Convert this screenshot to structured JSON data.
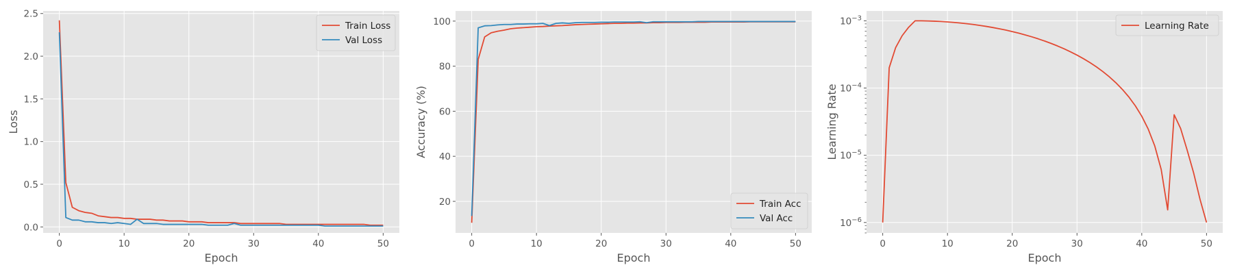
{
  "theme": {
    "panel_bg": "#E5E5E5",
    "grid": "#FFFFFF",
    "tick_color": "#555555",
    "series_red": "#E24A33",
    "series_blue": "#348ABD"
  },
  "chart_data": [
    {
      "type": "line",
      "xlabel": "Epoch",
      "ylabel": "Loss",
      "xlim": [
        -2.5,
        52.5
      ],
      "ylim": [
        -0.07,
        2.53
      ],
      "xticks": [
        0,
        10,
        20,
        30,
        40,
        50
      ],
      "xtick_labels": [
        "0",
        "10",
        "20",
        "30",
        "40",
        "50"
      ],
      "yticks": [
        0,
        0.5,
        1.0,
        1.5,
        2.0,
        2.5
      ],
      "ytick_labels": [
        "0.0",
        "0.5",
        "1.0",
        "1.5",
        "2.0",
        "2.5"
      ],
      "grid": true,
      "legend": "top-right",
      "x": [
        0,
        1,
        2,
        3,
        4,
        5,
        6,
        7,
        8,
        9,
        10,
        11,
        12,
        13,
        14,
        15,
        16,
        17,
        18,
        19,
        20,
        21,
        22,
        23,
        24,
        25,
        26,
        27,
        28,
        29,
        30,
        31,
        32,
        33,
        34,
        35,
        36,
        37,
        38,
        39,
        40,
        41,
        42,
        43,
        44,
        45,
        46,
        47,
        48,
        49,
        50
      ],
      "series": [
        {
          "name": "Train Loss",
          "color": "#E24A33",
          "values": [
            2.42,
            0.52,
            0.23,
            0.19,
            0.17,
            0.16,
            0.13,
            0.12,
            0.11,
            0.11,
            0.1,
            0.1,
            0.09,
            0.09,
            0.09,
            0.08,
            0.08,
            0.07,
            0.07,
            0.07,
            0.06,
            0.06,
            0.06,
            0.05,
            0.05,
            0.05,
            0.05,
            0.05,
            0.04,
            0.04,
            0.04,
            0.04,
            0.04,
            0.04,
            0.04,
            0.03,
            0.03,
            0.03,
            0.03,
            0.03,
            0.03,
            0.03,
            0.03,
            0.03,
            0.03,
            0.03,
            0.03,
            0.03,
            0.02,
            0.02,
            0.02
          ]
        },
        {
          "name": "Val Loss",
          "color": "#348ABD",
          "values": [
            2.28,
            0.11,
            0.08,
            0.08,
            0.06,
            0.06,
            0.05,
            0.05,
            0.04,
            0.05,
            0.04,
            0.03,
            0.09,
            0.04,
            0.04,
            0.04,
            0.03,
            0.03,
            0.03,
            0.03,
            0.03,
            0.03,
            0.03,
            0.02,
            0.02,
            0.02,
            0.02,
            0.04,
            0.02,
            0.02,
            0.02,
            0.02,
            0.02,
            0.02,
            0.02,
            0.02,
            0.02,
            0.02,
            0.02,
            0.02,
            0.02,
            0.01,
            0.01,
            0.01,
            0.01,
            0.01,
            0.01,
            0.01,
            0.01,
            0.01,
            0.01
          ]
        }
      ]
    },
    {
      "type": "line",
      "xlabel": "Epoch",
      "ylabel": "Accuracy (%)",
      "xlim": [
        -2.5,
        52.5
      ],
      "ylim": [
        6.0,
        104.5
      ],
      "xticks": [
        0,
        10,
        20,
        30,
        40,
        50
      ],
      "xtick_labels": [
        "0",
        "10",
        "20",
        "30",
        "40",
        "50"
      ],
      "yticks": [
        20,
        40,
        60,
        80,
        100
      ],
      "ytick_labels": [
        "20",
        "40",
        "60",
        "80",
        "100"
      ],
      "grid": true,
      "legend": "bottom-right",
      "x": [
        0,
        1,
        2,
        3,
        4,
        5,
        6,
        7,
        8,
        9,
        10,
        11,
        12,
        13,
        14,
        15,
        16,
        17,
        18,
        19,
        20,
        21,
        22,
        23,
        24,
        25,
        26,
        27,
        28,
        29,
        30,
        31,
        32,
        33,
        34,
        35,
        36,
        37,
        38,
        39,
        40,
        41,
        42,
        43,
        44,
        45,
        46,
        47,
        48,
        49,
        50
      ],
      "series": [
        {
          "name": "Train Acc",
          "color": "#E24A33",
          "values": [
            10.5,
            83.0,
            93.0,
            94.8,
            95.5,
            96.0,
            96.6,
            96.9,
            97.1,
            97.3,
            97.5,
            97.6,
            97.8,
            97.9,
            98.0,
            98.2,
            98.4,
            98.5,
            98.6,
            98.7,
            98.8,
            98.9,
            99.0,
            99.0,
            99.1,
            99.1,
            99.2,
            99.2,
            99.3,
            99.3,
            99.4,
            99.4,
            99.4,
            99.5,
            99.5,
            99.5,
            99.5,
            99.6,
            99.6,
            99.6,
            99.6,
            99.6,
            99.6,
            99.7,
            99.7,
            99.7,
            99.7,
            99.7,
            99.7,
            99.7,
            99.7
          ]
        },
        {
          "name": "Val Acc",
          "color": "#348ABD",
          "values": [
            13.5,
            97.0,
            97.9,
            98.0,
            98.3,
            98.5,
            98.5,
            98.7,
            98.7,
            98.8,
            98.8,
            99.0,
            98.0,
            99.0,
            99.2,
            99.0,
            99.3,
            99.4,
            99.4,
            99.4,
            99.5,
            99.5,
            99.6,
            99.6,
            99.6,
            99.6,
            99.7,
            99.3,
            99.7,
            99.7,
            99.7,
            99.7,
            99.7,
            99.7,
            99.7,
            99.8,
            99.8,
            99.8,
            99.8,
            99.8,
            99.8,
            99.8,
            99.8,
            99.8,
            99.8,
            99.8,
            99.8,
            99.8,
            99.8,
            99.8,
            99.8
          ]
        }
      ]
    },
    {
      "type": "line",
      "xlabel": "Epoch",
      "ylabel": "Learning Rate",
      "xlim": [
        -2.5,
        52.5
      ],
      "ylim": [
        7e-07,
        0.0014
      ],
      "yscale": "log",
      "xticks": [
        0,
        10,
        20,
        30,
        40,
        50
      ],
      "xtick_labels": [
        "0",
        "10",
        "20",
        "30",
        "40",
        "50"
      ],
      "yticks": [
        1e-06,
        1e-05,
        0.0001,
        0.001
      ],
      "ytick_labels": [
        {
          "base": "10",
          "exp": "−6"
        },
        {
          "base": "10",
          "exp": "−5"
        },
        {
          "base": "10",
          "exp": "−4"
        },
        {
          "base": "10",
          "exp": "−3"
        }
      ],
      "grid": true,
      "legend": "top-right",
      "x": [
        0,
        1,
        2,
        3,
        4,
        5,
        6,
        7,
        8,
        9,
        10,
        11,
        12,
        13,
        14,
        15,
        16,
        17,
        18,
        19,
        20,
        21,
        22,
        23,
        24,
        25,
        26,
        27,
        28,
        29,
        30,
        31,
        32,
        33,
        34,
        35,
        36,
        37,
        38,
        39,
        40,
        41,
        42,
        43,
        44,
        45,
        46,
        47,
        48,
        49,
        50
      ],
      "series": [
        {
          "name": "Learning Rate",
          "color": "#E24A33",
          "values": [
            1e-06,
            0.0002,
            0.0004,
            0.0006,
            0.0008,
            0.001,
            0.00099846,
            0.00099385,
            0.0009862,
            0.00097555,
            0.00096194,
            0.0009455,
            0.00092632,
            0.00090451,
            0.0008802,
            0.00085355,
            0.00082473,
            0.00079389,
            0.00076125,
            0.000727,
            0.00069134,
            0.00065451,
            0.00061672,
            0.00057822,
            0.00053923,
            0.0005,
            0.00046077,
            0.00042178,
            0.00038328,
            0.00034549,
            0.00030866,
            0.000273,
            0.00023875,
            0.00020611,
            0.00017527,
            0.00014645,
            0.0001198,
            9.549e-05,
            7.368e-05,
            5.45e-05,
            3.806e-05,
            2.445e-05,
            1.38e-05,
            6.15e-06,
            1.54e-06,
            4e-05,
            2.5e-05,
            1.2e-05,
            5.5e-06,
            2.2e-06,
            1e-06
          ]
        }
      ]
    }
  ]
}
